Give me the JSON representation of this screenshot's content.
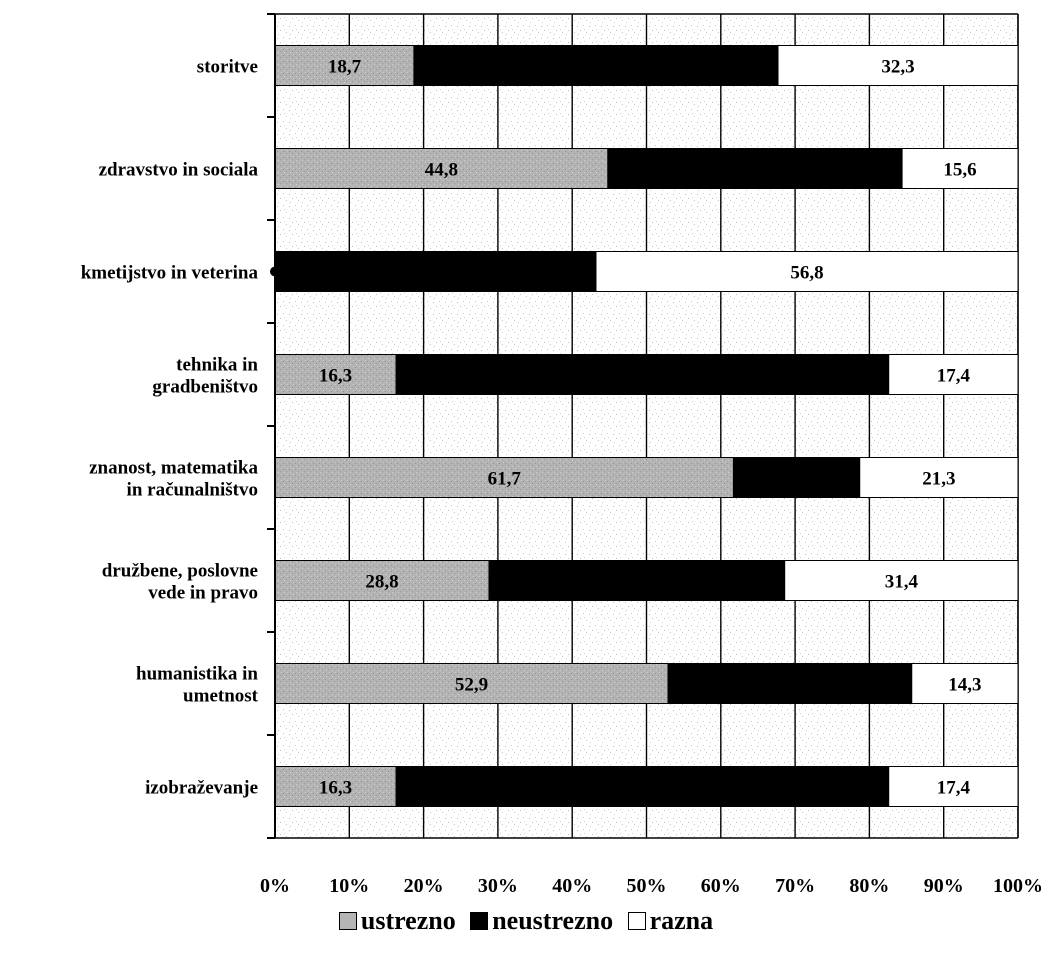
{
  "chart_data": {
    "type": "bar",
    "orientation": "horizontal",
    "stacked": "percent",
    "categories": [
      [
        "storitve"
      ],
      [
        "zdravstvo in sociala"
      ],
      [
        "kmetijstvo in veterina"
      ],
      [
        "tehnika in",
        "gradbeništvo"
      ],
      [
        "znanost, matematika",
        "in računalništvo"
      ],
      [
        "družbene, poslovne",
        "vede in pravo"
      ],
      [
        "humanistika in",
        "umetnost"
      ],
      [
        "izobraževanje"
      ]
    ],
    "series": [
      {
        "name": "ustrezno",
        "color": "#b5b5b5",
        "values": [
          18.7,
          44.8,
          0,
          16.3,
          61.7,
          28.8,
          52.9,
          16.3
        ],
        "labels": [
          "18,7",
          "44,8",
          "",
          "16,3",
          "61,7",
          "28,8",
          "52,9",
          "16,3"
        ]
      },
      {
        "name": "neustrezno",
        "color": "#000000",
        "values": [
          49.0,
          39.6,
          43.2,
          66.3,
          17.0,
          39.8,
          32.8,
          66.3
        ],
        "labels": [
          "",
          "",
          "",
          "",
          "",
          "",
          "",
          ""
        ]
      },
      {
        "name": "razna",
        "color": "#ffffff",
        "values": [
          32.3,
          15.6,
          56.8,
          17.4,
          21.3,
          31.4,
          14.3,
          17.4
        ],
        "labels": [
          "32,3",
          "15,6",
          "56,8",
          "17,4",
          "21,3",
          "31,4",
          "14,3",
          "17,4"
        ]
      }
    ],
    "xticks": [
      "0%",
      "10%",
      "20%",
      "30%",
      "40%",
      "50%",
      "60%",
      "70%",
      "80%",
      "90%",
      "100%"
    ],
    "xlim": [
      0,
      100
    ],
    "grid": true,
    "legend_position": "bottom"
  }
}
